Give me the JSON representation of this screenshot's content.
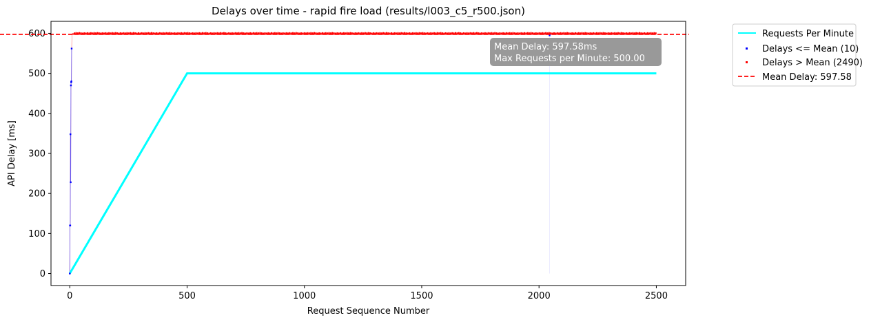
{
  "chart_data": {
    "type": "line",
    "title": "Delays over time - rapid fire load (results/l003_c5_r500.json)",
    "xlabel": "Request Sequence Number",
    "ylabel": "API Delay [ms]",
    "xlim": [
      -80,
      2625
    ],
    "ylim": [
      -30,
      630
    ],
    "xticks": [
      0,
      500,
      1000,
      1500,
      2000,
      2500
    ],
    "yticks": [
      0,
      100,
      200,
      300,
      400,
      500,
      600
    ],
    "grid": false,
    "legend_position": "outside-top-right",
    "series": [
      {
        "name": "Requests Per Minute",
        "kind": "line",
        "color": "#00ffff",
        "x": [
          0,
          500,
          2500
        ],
        "y": [
          0,
          500,
          500
        ]
      },
      {
        "name": "Delays <= Mean (10)",
        "kind": "scatter",
        "color": "#0000ff",
        "x": [
          0,
          1,
          2,
          3,
          4,
          5,
          6,
          7,
          8,
          2045
        ],
        "y": [
          0,
          120,
          120,
          348,
          228,
          470,
          478,
          480,
          562,
          595
        ]
      },
      {
        "name": "Delays > Mean (2490)",
        "kind": "scatter",
        "color": "#ff0000",
        "x_range": [
          10,
          2500
        ],
        "y_band": [
          597,
          600
        ]
      },
      {
        "name": "Mean Delay: 597.58",
        "kind": "hline",
        "color": "#ff0000",
        "y": 597.58
      }
    ],
    "annotation": {
      "lines": [
        "Mean Delay: 597.58ms",
        "Max Requests per Minute:  500.00"
      ]
    }
  }
}
